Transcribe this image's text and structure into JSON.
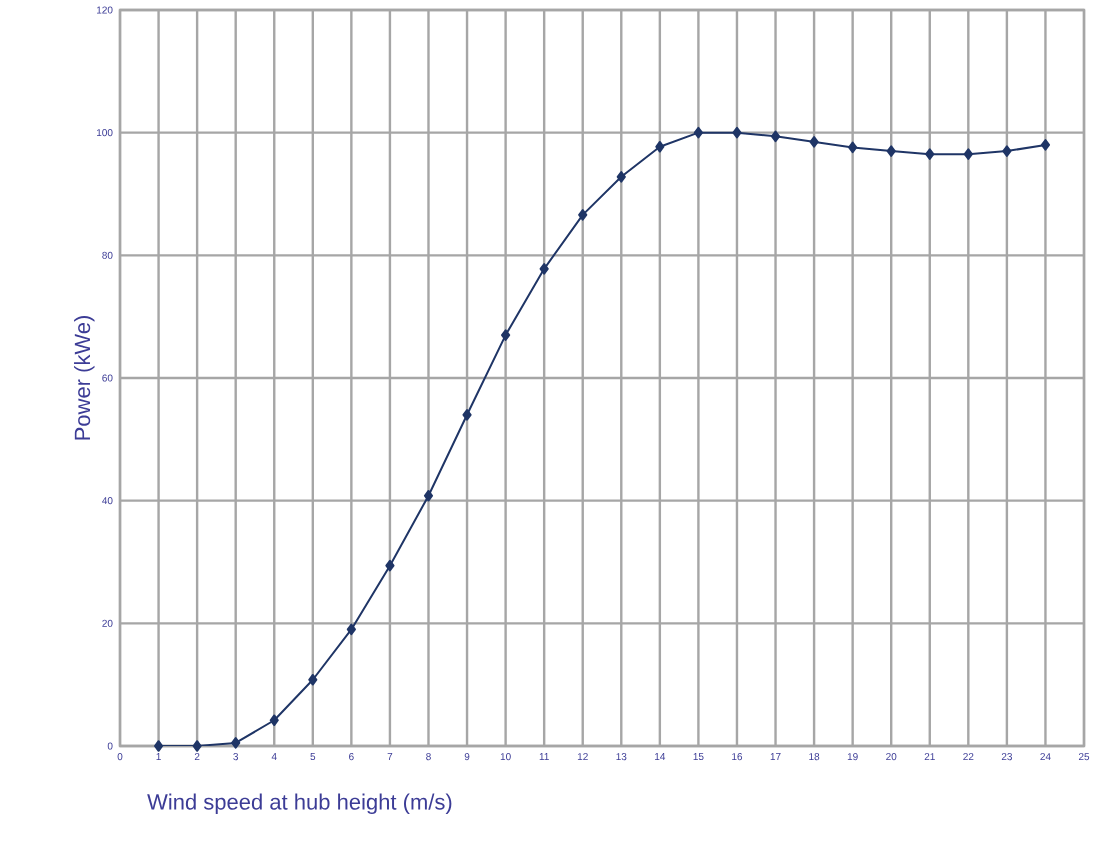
{
  "chart_data": {
    "type": "line",
    "xlabel": "Wind speed at hub height (m/s)",
    "ylabel": "Power  (kWe)",
    "x": [
      1,
      2,
      3,
      4,
      5,
      6,
      7,
      8,
      9,
      10,
      11,
      12,
      13,
      14,
      15,
      16,
      17,
      18,
      19,
      20,
      21,
      22,
      23,
      24
    ],
    "series": [
      {
        "color": "#1f3566",
        "values": [
          0,
          0,
          0.5,
          4.2,
          10.8,
          19,
          29.4,
          40.8,
          54,
          67,
          77.8,
          86.6,
          92.8,
          97.7,
          100,
          100,
          99.4,
          98.5,
          97.6,
          97,
          96.5,
          96.5,
          97,
          98
        ]
      }
    ],
    "xlim": [
      0,
      25
    ],
    "xticks": [
      0,
      1,
      2,
      3,
      4,
      5,
      6,
      7,
      8,
      9,
      10,
      11,
      12,
      13,
      14,
      15,
      16,
      17,
      18,
      19,
      20,
      21,
      22,
      23,
      24,
      25
    ],
    "ylim": [
      0,
      120
    ],
    "yticks": [
      0,
      20,
      40,
      60,
      80,
      100,
      120
    ],
    "grid": true,
    "legend": false,
    "marker": "diamond",
    "line_style": "solid"
  }
}
